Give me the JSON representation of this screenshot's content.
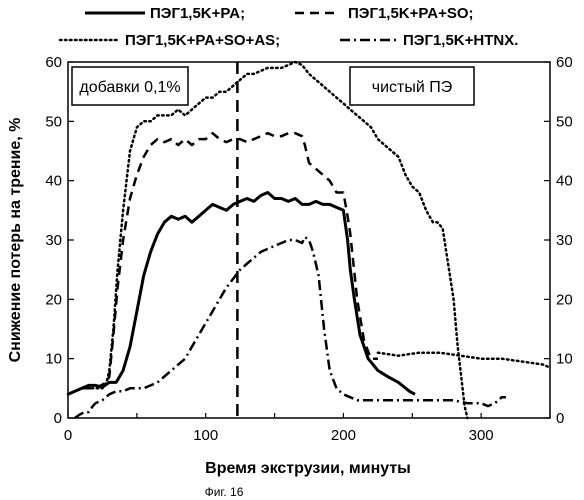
{
  "chart_data": {
    "type": "line",
    "title": "",
    "xlabel": "Время экструзии, минуты",
    "ylabel": "Снижение потерь на трение, %",
    "xlim": [
      0,
      350
    ],
    "ylim": [
      0,
      60
    ],
    "x_ticks": [
      0,
      100,
      200,
      300
    ],
    "y_ticks": [
      0,
      10,
      20,
      30,
      40,
      50,
      60
    ],
    "grid": false,
    "legend_position": "top",
    "annotations": [
      "добавки 0,1%",
      "чистый ПЭ"
    ],
    "vertical_marker_x": 123,
    "caption": "Фиг. 16",
    "series": [
      {
        "name": "ПЭГ1,5K+PA;",
        "style": "solid",
        "points": [
          [
            0,
            4
          ],
          [
            5,
            4.5
          ],
          [
            10,
            5
          ],
          [
            15,
            5.5
          ],
          [
            20,
            5.5
          ],
          [
            25,
            5.2
          ],
          [
            30,
            6
          ],
          [
            35,
            6
          ],
          [
            40,
            8
          ],
          [
            45,
            12
          ],
          [
            50,
            18
          ],
          [
            55,
            24
          ],
          [
            60,
            28
          ],
          [
            65,
            31
          ],
          [
            70,
            33
          ],
          [
            75,
            34
          ],
          [
            80,
            33.5
          ],
          [
            85,
            34
          ],
          [
            90,
            33
          ],
          [
            95,
            34
          ],
          [
            100,
            35
          ],
          [
            105,
            36
          ],
          [
            110,
            35.5
          ],
          [
            115,
            35
          ],
          [
            120,
            36
          ],
          [
            125,
            36.5
          ],
          [
            130,
            37
          ],
          [
            135,
            36.5
          ],
          [
            140,
            37.5
          ],
          [
            145,
            38
          ],
          [
            150,
            37
          ],
          [
            155,
            37
          ],
          [
            160,
            36.5
          ],
          [
            165,
            37
          ],
          [
            170,
            36
          ],
          [
            175,
            36
          ],
          [
            180,
            36.5
          ],
          [
            185,
            36
          ],
          [
            190,
            36
          ],
          [
            195,
            35.5
          ],
          [
            200,
            35
          ],
          [
            203,
            30
          ],
          [
            205,
            25
          ],
          [
            208,
            20
          ],
          [
            212,
            14
          ],
          [
            218,
            10
          ],
          [
            225,
            8
          ],
          [
            232,
            7
          ],
          [
            240,
            6
          ],
          [
            248,
            4.5
          ],
          [
            252,
            4
          ]
        ]
      },
      {
        "name": "ПЭГ1,5K+PA+SO;",
        "style": "dashed",
        "points": [
          [
            0,
            4
          ],
          [
            10,
            5
          ],
          [
            20,
            5
          ],
          [
            28,
            6
          ],
          [
            30,
            7
          ],
          [
            33,
            14
          ],
          [
            36,
            22
          ],
          [
            40,
            30
          ],
          [
            45,
            37
          ],
          [
            50,
            41
          ],
          [
            55,
            44
          ],
          [
            60,
            46
          ],
          [
            65,
            47
          ],
          [
            70,
            46.5
          ],
          [
            75,
            47
          ],
          [
            80,
            46
          ],
          [
            85,
            47
          ],
          [
            90,
            46
          ],
          [
            95,
            47
          ],
          [
            100,
            47
          ],
          [
            105,
            48
          ],
          [
            110,
            47
          ],
          [
            115,
            46.5
          ],
          [
            120,
            47
          ],
          [
            125,
            47
          ],
          [
            130,
            46.5
          ],
          [
            135,
            47
          ],
          [
            140,
            47.5
          ],
          [
            145,
            48
          ],
          [
            150,
            47.5
          ],
          [
            155,
            47.5
          ],
          [
            160,
            48
          ],
          [
            165,
            48
          ],
          [
            170,
            47.5
          ],
          [
            172,
            46
          ],
          [
            175,
            43
          ],
          [
            180,
            42
          ],
          [
            185,
            41
          ],
          [
            190,
            40
          ],
          [
            195,
            38
          ],
          [
            200,
            38
          ],
          [
            203,
            34
          ],
          [
            205,
            31
          ],
          [
            210,
            20
          ],
          [
            215,
            13
          ],
          [
            220,
            10
          ],
          [
            225,
            10
          ]
        ]
      },
      {
        "name": "ПЭГ1,5K+PA+SO+AS;",
        "style": "dotted",
        "points": [
          [
            0,
            4
          ],
          [
            10,
            5
          ],
          [
            20,
            5
          ],
          [
            25,
            5
          ],
          [
            28,
            6
          ],
          [
            30,
            8
          ],
          [
            33,
            15
          ],
          [
            36,
            25
          ],
          [
            40,
            35
          ],
          [
            45,
            45
          ],
          [
            50,
            49
          ],
          [
            55,
            50
          ],
          [
            60,
            50
          ],
          [
            65,
            51
          ],
          [
            70,
            51
          ],
          [
            75,
            51
          ],
          [
            80,
            52
          ],
          [
            85,
            51
          ],
          [
            90,
            52
          ],
          [
            95,
            53
          ],
          [
            100,
            54
          ],
          [
            105,
            54
          ],
          [
            110,
            55
          ],
          [
            115,
            55
          ],
          [
            120,
            56
          ],
          [
            125,
            57
          ],
          [
            130,
            58
          ],
          [
            135,
            58
          ],
          [
            140,
            58.5
          ],
          [
            145,
            59
          ],
          [
            150,
            59
          ],
          [
            155,
            59
          ],
          [
            160,
            59.5
          ],
          [
            165,
            60
          ],
          [
            170,
            59.5
          ],
          [
            175,
            58
          ],
          [
            180,
            57
          ],
          [
            185,
            56
          ],
          [
            190,
            55
          ],
          [
            195,
            54
          ],
          [
            200,
            53
          ],
          [
            205,
            52
          ],
          [
            210,
            51
          ],
          [
            215,
            50
          ],
          [
            220,
            49
          ],
          [
            225,
            47
          ],
          [
            230,
            46
          ],
          [
            235,
            45
          ],
          [
            240,
            44
          ],
          [
            245,
            41
          ],
          [
            250,
            39
          ],
          [
            255,
            38
          ],
          [
            260,
            35
          ],
          [
            265,
            33
          ],
          [
            268,
            33
          ],
          [
            272,
            32
          ],
          [
            276,
            26
          ],
          [
            280,
            20
          ],
          [
            283,
            12
          ],
          [
            286,
            6
          ],
          [
            288,
            2
          ],
          [
            290,
            0
          ]
        ]
      },
      {
        "name": "ПЭГ1,5K+HTNX.",
        "style": "dashdot",
        "points": [
          [
            5,
            0
          ],
          [
            8,
            0.5
          ],
          [
            12,
            1
          ],
          [
            15,
            1
          ],
          [
            18,
            2
          ],
          [
            20,
            2.5
          ],
          [
            25,
            3
          ],
          [
            30,
            4
          ],
          [
            35,
            4.5
          ],
          [
            40,
            4.5
          ],
          [
            45,
            5
          ],
          [
            50,
            5
          ],
          [
            55,
            5
          ],
          [
            60,
            5.5
          ],
          [
            65,
            6
          ],
          [
            70,
            7
          ],
          [
            75,
            8
          ],
          [
            80,
            9
          ],
          [
            85,
            10
          ],
          [
            90,
            12
          ],
          [
            95,
            14
          ],
          [
            100,
            16
          ],
          [
            105,
            18
          ],
          [
            110,
            20
          ],
          [
            115,
            22
          ],
          [
            120,
            23.5
          ],
          [
            125,
            25
          ],
          [
            130,
            26
          ],
          [
            135,
            27
          ],
          [
            140,
            28
          ],
          [
            145,
            28.5
          ],
          [
            150,
            29
          ],
          [
            155,
            29.5
          ],
          [
            160,
            30
          ],
          [
            165,
            30
          ],
          [
            170,
            29.5
          ],
          [
            172,
            30.5
          ],
          [
            175,
            30
          ],
          [
            178,
            28
          ],
          [
            182,
            24
          ],
          [
            186,
            15
          ],
          [
            190,
            8
          ],
          [
            195,
            5
          ],
          [
            200,
            4
          ],
          [
            210,
            3
          ],
          [
            220,
            3
          ],
          [
            230,
            3
          ],
          [
            240,
            3
          ],
          [
            250,
            3
          ],
          [
            260,
            3
          ],
          [
            270,
            3
          ],
          [
            280,
            3
          ],
          [
            290,
            2.5
          ],
          [
            300,
            2.5
          ],
          [
            305,
            2
          ],
          [
            310,
            2.5
          ],
          [
            315,
            3.5
          ],
          [
            318,
            3.5
          ]
        ]
      },
      {
        "name": "",
        "style": "dotted",
        "points": [
          [
            225,
            11
          ],
          [
            240,
            10.5
          ],
          [
            255,
            11
          ],
          [
            270,
            11
          ],
          [
            285,
            10.5
          ],
          [
            300,
            10
          ],
          [
            315,
            10
          ],
          [
            330,
            9.5
          ],
          [
            345,
            9
          ],
          [
            350,
            8.5
          ]
        ]
      }
    ]
  }
}
